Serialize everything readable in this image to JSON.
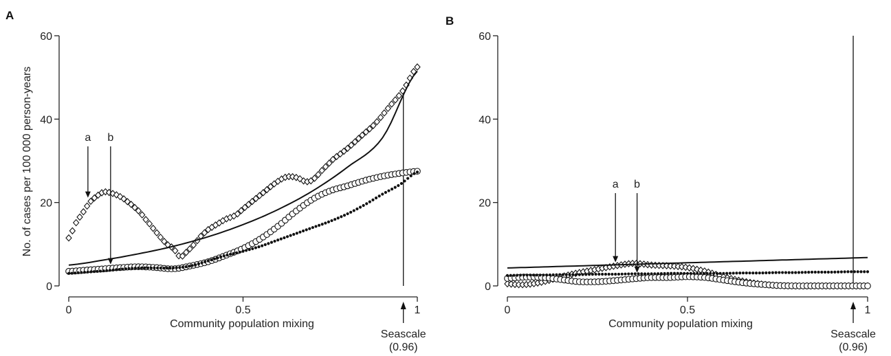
{
  "chart_data": [
    {
      "panel": "A",
      "type": "scatter",
      "xlabel": "Community population mixing",
      "ylabel": "No. of cases per 100 000 person-years",
      "xlim": [
        0,
        1
      ],
      "ylim": [
        0,
        60
      ],
      "xticks": [
        {
          "v": 0,
          "label": "0"
        },
        {
          "v": 0.5,
          "label": "0.5"
        },
        {
          "v": 1,
          "label": "1"
        }
      ],
      "yticks": [
        {
          "v": 0,
          "label": "0"
        },
        {
          "v": 20,
          "label": "20"
        },
        {
          "v": 40,
          "label": "40"
        },
        {
          "v": 60,
          "label": "60"
        }
      ],
      "annotations": [
        {
          "label": "a",
          "x": 0.055,
          "y": 21
        },
        {
          "label": "b",
          "x": 0.12,
          "y": 5
        }
      ],
      "reference_line": {
        "x": 0.96,
        "label_line1": "Seascale",
        "label_line2": "(0.96)"
      },
      "series": [
        {
          "marker": "diamond",
          "x": [
            0,
            0.02,
            0.04,
            0.06,
            0.08,
            0.1,
            0.12,
            0.15,
            0.18,
            0.2,
            0.22,
            0.25,
            0.28,
            0.3,
            0.32,
            0.34,
            0.36,
            0.38,
            0.4,
            0.43,
            0.45,
            0.48,
            0.5,
            0.53,
            0.56,
            0.59,
            0.62,
            0.64,
            0.66,
            0.68,
            0.7,
            0.73,
            0.76,
            0.8,
            0.84,
            0.88,
            0.92,
            0.96,
            1.0
          ],
          "y": [
            11.5,
            15,
            17.5,
            20,
            21.5,
            22.5,
            22.3,
            21.3,
            19.5,
            18,
            16,
            13,
            10.2,
            9,
            7,
            8.3,
            10,
            12,
            13.5,
            15,
            16,
            17,
            18.5,
            20.5,
            22.5,
            24.5,
            26,
            26.2,
            25.8,
            25,
            25.5,
            28,
            30.5,
            33,
            36,
            39,
            43,
            47,
            52.5
          ]
        },
        {
          "marker": "circle",
          "x": [
            0,
            0.05,
            0.1,
            0.15,
            0.2,
            0.25,
            0.3,
            0.35,
            0.4,
            0.45,
            0.5,
            0.55,
            0.6,
            0.65,
            0.7,
            0.75,
            0.8,
            0.85,
            0.9,
            0.95,
            1.0
          ],
          "y": [
            3.5,
            3.8,
            4.1,
            4.4,
            4.6,
            4.4,
            4.1,
            4.8,
            5.8,
            7.3,
            9,
            11.3,
            14.3,
            17.8,
            20.8,
            22.8,
            24,
            25.3,
            26.3,
            27,
            27.5
          ]
        },
        {
          "marker": "dot",
          "x": [
            0,
            0.05,
            0.1,
            0.15,
            0.2,
            0.25,
            0.3,
            0.35,
            0.4,
            0.45,
            0.5,
            0.55,
            0.6,
            0.65,
            0.7,
            0.75,
            0.8,
            0.85,
            0.9,
            0.95,
            1.0
          ],
          "y": [
            3,
            3.3,
            3.6,
            4,
            4.3,
            4.3,
            4.3,
            4.8,
            6,
            7.3,
            8.3,
            9.5,
            11,
            12.5,
            14,
            15.5,
            17.3,
            19.5,
            22,
            24.3,
            27.3
          ]
        },
        {
          "marker": "line",
          "x": [
            0,
            0.1,
            0.2,
            0.3,
            0.4,
            0.5,
            0.6,
            0.7,
            0.8,
            0.9,
            1.0
          ],
          "y": [
            5,
            6.2,
            7.7,
            9.5,
            11.8,
            14.7,
            18.3,
            22.8,
            28.5,
            35.5,
            51.5
          ]
        }
      ]
    },
    {
      "panel": "B",
      "type": "scatter",
      "xlabel": "Community population mixing",
      "ylabel": "",
      "xlim": [
        0,
        1
      ],
      "ylim": [
        0,
        60
      ],
      "xticks": [
        {
          "v": 0,
          "label": "0"
        },
        {
          "v": 0.5,
          "label": "0.5"
        },
        {
          "v": 1,
          "label": "1"
        }
      ],
      "yticks": [
        {
          "v": 0,
          "label": "0"
        },
        {
          "v": 20,
          "label": "20"
        },
        {
          "v": 40,
          "label": "40"
        },
        {
          "v": 60,
          "label": "60"
        }
      ],
      "annotations": [
        {
          "label": "a",
          "x": 0.3,
          "y": 5.5
        },
        {
          "label": "b",
          "x": 0.36,
          "y": 3
        }
      ],
      "reference_line": {
        "x": 0.96,
        "label_line1": "Seascale",
        "label_line2": "(0.96)"
      },
      "series": [
        {
          "marker": "diamond",
          "x": [
            0,
            0.03,
            0.06,
            0.1,
            0.15,
            0.2,
            0.25,
            0.3,
            0.35,
            0.4,
            0.45,
            0.5,
            0.55,
            0.6,
            0.65,
            0.7,
            0.75,
            0.8,
            0.85,
            0.9,
            0.95,
            1.0
          ],
          "y": [
            0.5,
            0.3,
            0.4,
            1,
            2.2,
            3.2,
            4,
            4.8,
            5.4,
            5,
            4.8,
            4.4,
            3.5,
            2.2,
            1.2,
            0.5,
            0.1,
            0,
            0,
            0,
            0,
            0
          ]
        },
        {
          "marker": "circle",
          "x": [
            0,
            0.05,
            0.1,
            0.15,
            0.2,
            0.25,
            0.3,
            0.35,
            0.4,
            0.45,
            0.5,
            0.55,
            0.6,
            0.65,
            0.7,
            0.75,
            0.8,
            0.85,
            0.9,
            0.95,
            1.0
          ],
          "y": [
            1.8,
            2.1,
            2,
            1.5,
            1,
            1,
            1.3,
            1.7,
            2,
            2,
            2.2,
            2,
            1.4,
            0.8,
            0.4,
            0.1,
            0,
            0,
            0,
            0,
            0
          ]
        },
        {
          "marker": "dot",
          "x": [
            0,
            0.05,
            0.1,
            0.15,
            0.2,
            0.25,
            0.3,
            0.35,
            0.4,
            0.45,
            0.5,
            0.55,
            0.6,
            0.65,
            0.7,
            0.75,
            0.8,
            0.85,
            0.9,
            0.95,
            1.0
          ],
          "y": [
            2.5,
            2.6,
            2.6,
            2.7,
            2.7,
            2.8,
            2.8,
            2.9,
            2.9,
            3,
            3,
            3,
            3,
            3.1,
            3.1,
            3.2,
            3.2,
            3.3,
            3.3,
            3.4,
            3.4
          ]
        },
        {
          "marker": "line",
          "x": [
            0,
            1.0
          ],
          "y": [
            4.3,
            6.8
          ]
        }
      ]
    }
  ]
}
